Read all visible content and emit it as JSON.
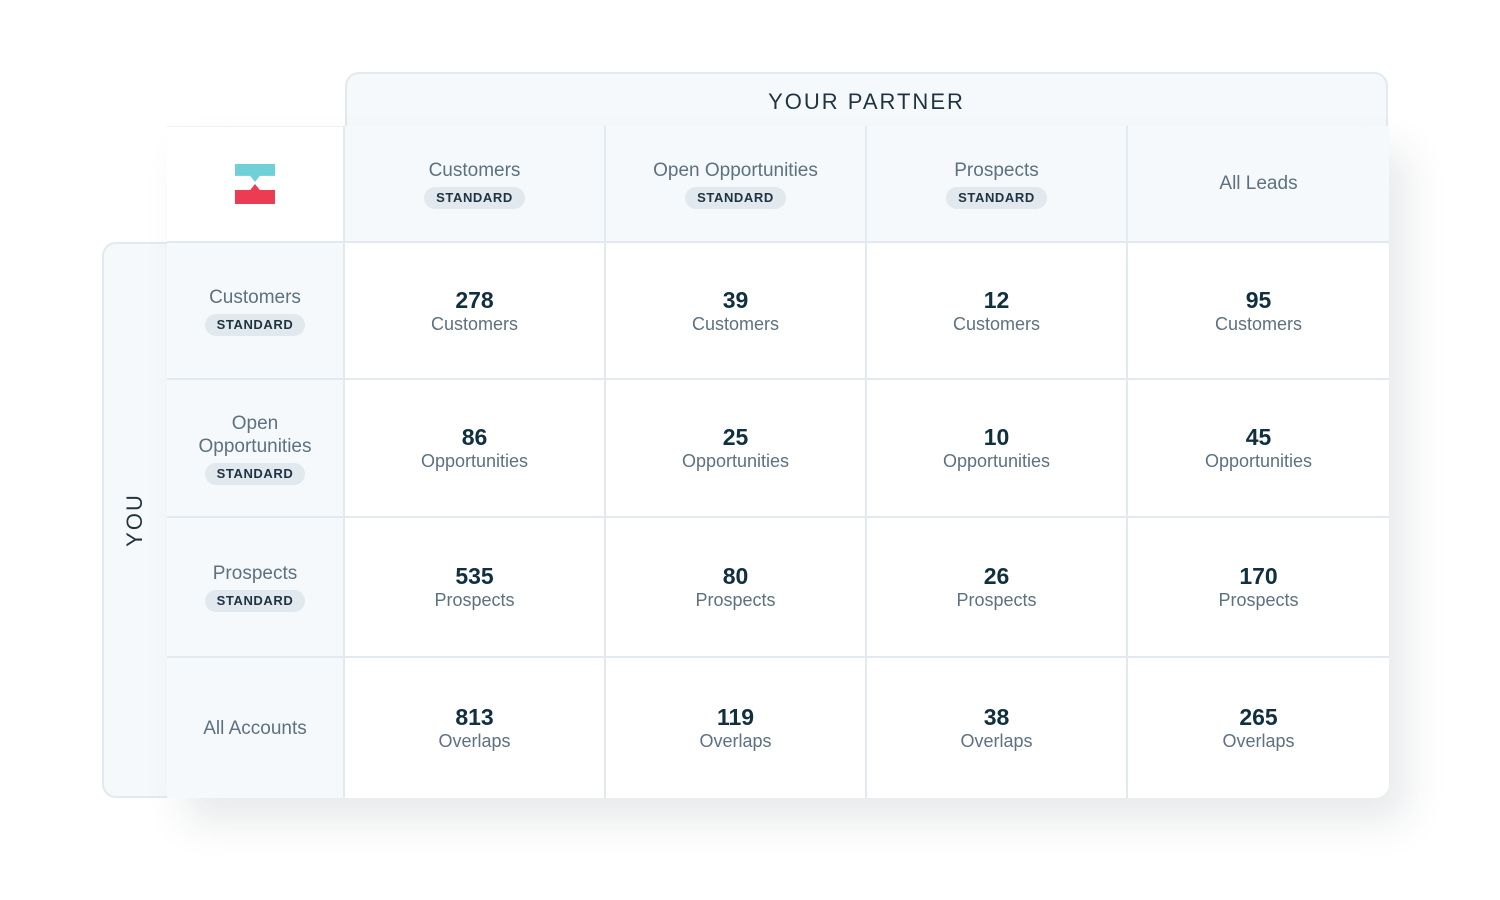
{
  "partner_title": "YOUR PARTNER",
  "you_title": "YOU",
  "columns": [
    {
      "label": "Customers",
      "badge": "STANDARD"
    },
    {
      "label": "Open Opportunities",
      "badge": "STANDARD"
    },
    {
      "label": "Prospects",
      "badge": "STANDARD"
    },
    {
      "label": "All Leads",
      "badge": ""
    }
  ],
  "rows": [
    {
      "label": "Customers",
      "badge": "STANDARD",
      "cells": [
        {
          "value": "278",
          "unit": "Customers"
        },
        {
          "value": "39",
          "unit": "Customers"
        },
        {
          "value": "12",
          "unit": "Customers"
        },
        {
          "value": "95",
          "unit": "Customers"
        }
      ]
    },
    {
      "label": "Open Opportunities",
      "badge": "STANDARD",
      "cells": [
        {
          "value": "86",
          "unit": "Opportunities"
        },
        {
          "value": "25",
          "unit": "Opportunities"
        },
        {
          "value": "10",
          "unit": "Opportunities"
        },
        {
          "value": "45",
          "unit": "Opportunities"
        }
      ]
    },
    {
      "label": "Prospects",
      "badge": "STANDARD",
      "cells": [
        {
          "value": "535",
          "unit": "Prospects"
        },
        {
          "value": "80",
          "unit": "Prospects"
        },
        {
          "value": "26",
          "unit": "Prospects"
        },
        {
          "value": "170",
          "unit": "Prospects"
        }
      ]
    },
    {
      "label": "All Accounts",
      "badge": "",
      "cells": [
        {
          "value": "813",
          "unit": "Overlaps"
        },
        {
          "value": "119",
          "unit": "Overlaps"
        },
        {
          "value": "38",
          "unit": "Overlaps"
        },
        {
          "value": "265",
          "unit": "Overlaps"
        }
      ]
    }
  ],
  "logo": {
    "icon": "crossbeam-logo-icon",
    "top_color": "#6fd0d8",
    "bottom_color": "#ec3b52"
  }
}
